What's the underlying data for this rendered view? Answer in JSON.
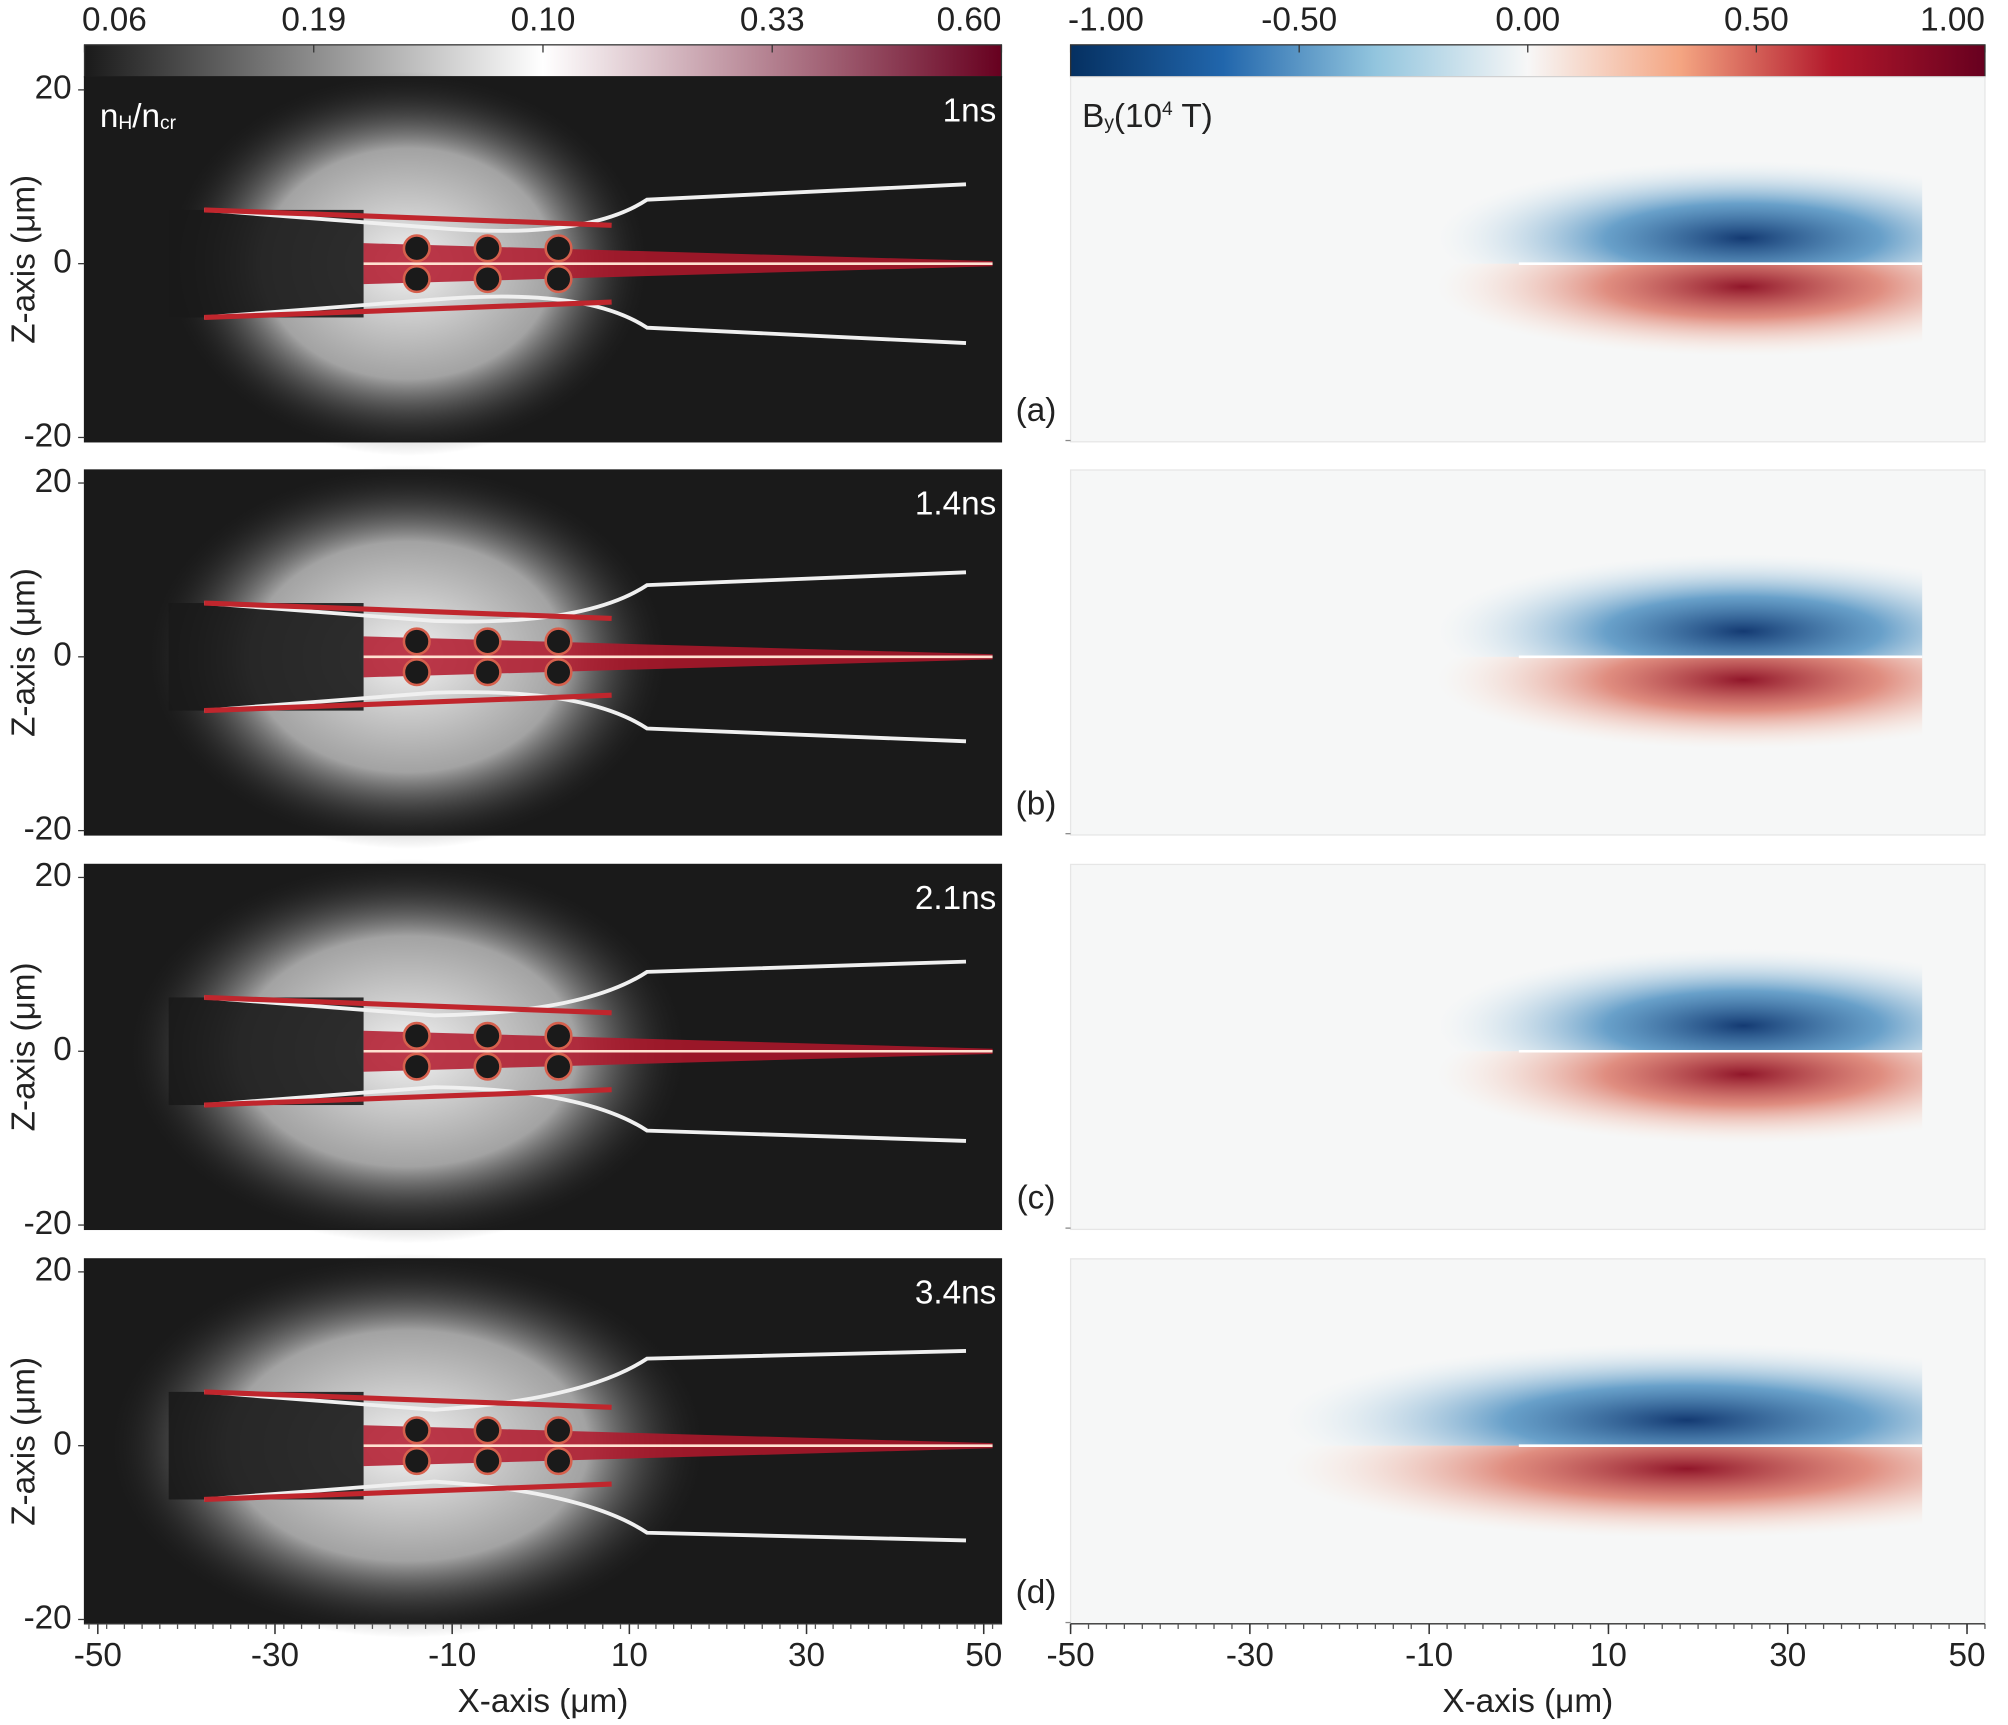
{
  "chart_data": [
    {
      "type": "heatmap",
      "colorbar": {
        "label": [
          "n",
          "H",
          "/n",
          "cr"
        ],
        "ticks": [
          0.06,
          0.19,
          {
            "value": 0.1,
            "label": "0.10"
          },
          0.33,
          {
            "value": 0.6,
            "label": "0.60"
          }
        ],
        "colors": [
          "#1a1a1a",
          "#ffffff",
          "#67001f"
        ]
      },
      "panels": [
        {
          "time": "1ns",
          "letter": "(a)"
        },
        {
          "time": "1.4ns",
          "letter": "(b)"
        },
        {
          "time": "2.1ns",
          "letter": "(c)"
        },
        {
          "time": "3.4ns",
          "letter": "(d)"
        }
      ],
      "xlabel": "X-axis (μm)",
      "ylabel": "Z-axis (μm)",
      "xlim": [
        -51.5,
        52
      ],
      "ylim": [
        -20.5,
        21.5
      ],
      "xticks": [
        -50,
        -30,
        -10,
        10,
        30,
        50
      ],
      "yticks": [
        20,
        0,
        -20
      ]
    },
    {
      "type": "heatmap",
      "colorbar": {
        "label": [
          "B",
          "y",
          "(10",
          "4",
          " T)"
        ],
        "clim": [
          -1,
          1
        ],
        "ticks": [
          {
            "value": -1,
            "label": "-1.00"
          },
          {
            "value": -0.5,
            "label": "-0.50"
          },
          {
            "value": 0,
            "label": "0.00"
          },
          {
            "value": 0.5,
            "label": "0.50"
          },
          {
            "value": 1,
            "label": "1.00"
          }
        ],
        "colors": [
          "#053061",
          "#2166ac",
          "#92c5de",
          "#f7f7f7",
          "#f4a582",
          "#b2182b",
          "#67001f"
        ]
      },
      "xlabel": "X-axis (μm)",
      "xlim": [
        -50,
        52
      ],
      "ylim": [
        -20.5,
        21.5
      ],
      "xticks": [
        -50,
        -30,
        -10,
        10,
        30,
        50
      ]
    }
  ]
}
